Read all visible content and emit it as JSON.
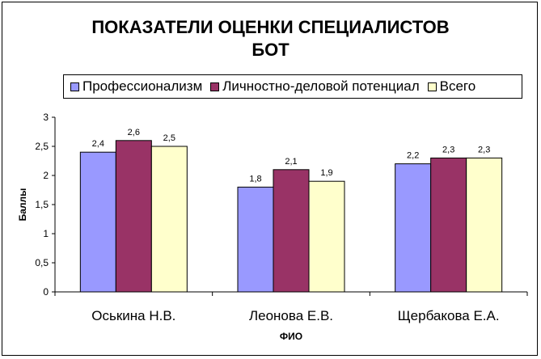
{
  "chart_data": {
    "type": "bar",
    "title_line1": "ПОКАЗАТЕЛИ ОЦЕНКИ СПЕЦИАЛИСТОВ",
    "title_line2": "БОТ",
    "xlabel": "ФИО",
    "ylabel": "Баллы",
    "ylim": [
      0,
      3
    ],
    "yticks": [
      "0",
      "0,5",
      "1",
      "1,5",
      "2",
      "2,5",
      "3"
    ],
    "categories": [
      "Оськина Н.В.",
      "Леонова Е.В.",
      "Щербакова Е.А."
    ],
    "series": [
      {
        "name": "Профессионализм",
        "color": "#9999ff",
        "values": [
          2.4,
          1.8,
          2.2
        ],
        "labels": [
          "2,4",
          "1,8",
          "2,2"
        ]
      },
      {
        "name": "Личностно-деловой потенциал",
        "color": "#993366",
        "values": [
          2.6,
          2.1,
          2.3
        ],
        "labels": [
          "2,6",
          "2,1",
          "2,3"
        ]
      },
      {
        "name": "Всего",
        "color": "#ffffcc",
        "values": [
          2.5,
          1.9,
          2.3
        ],
        "labels": [
          "2,5",
          "1,9",
          "2,3"
        ]
      }
    ],
    "grid": false,
    "legend_position": "top"
  }
}
